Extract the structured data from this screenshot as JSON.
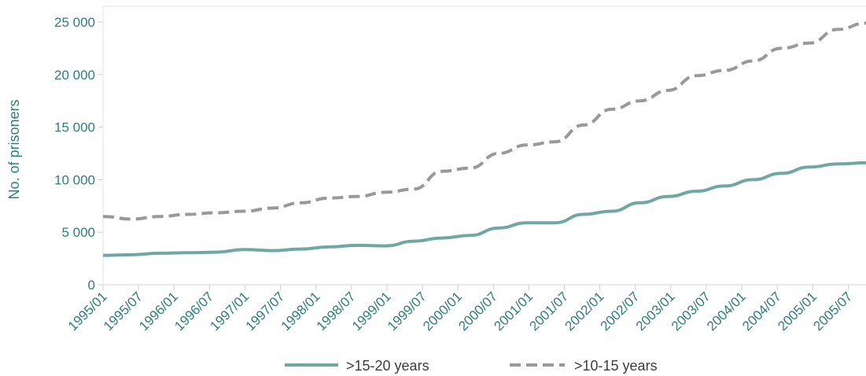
{
  "chart_data": {
    "type": "line",
    "title": "",
    "xlabel": "",
    "ylabel": "No. of prisoners",
    "ylim": [
      0,
      26500
    ],
    "y_ticks": [
      {
        "value": 0,
        "label": "0"
      },
      {
        "value": 5000,
        "label": "5 000"
      },
      {
        "value": 10000,
        "label": "10 000"
      },
      {
        "value": 15000,
        "label": "15 000"
      },
      {
        "value": 20000,
        "label": "20 000"
      },
      {
        "value": 25000,
        "label": "25 000"
      }
    ],
    "x_tick_labels": [
      "1995/01",
      "1995/07",
      "1996/01",
      "1996/07",
      "1997/01",
      "1997/07",
      "1998/01",
      "1998/07",
      "1999/01",
      "1999/07",
      "2000/01",
      "2000/07",
      "2001/01",
      "2001/07",
      "2002/01",
      "2002/07",
      "2003/01",
      "2003/07",
      "2004/01",
      "2004/07",
      "2005/01",
      "2005/07"
    ],
    "grid": false,
    "legend_position": "bottom",
    "series": [
      {
        "name": ">15-20 years",
        "color": "#6fa8a3",
        "style": "solid",
        "values": [
          2800,
          2850,
          3000,
          3050,
          3100,
          3350,
          3250,
          3400,
          3600,
          3750,
          3700,
          4150,
          4450,
          4700,
          5400,
          5900,
          5900,
          6700,
          7000,
          7800,
          8400,
          8900,
          9400,
          10000,
          10600,
          11200,
          11500,
          11600
        ]
      },
      {
        "name": ">10-15 years",
        "color": "#999999",
        "style": "dashed",
        "values": [
          6500,
          6250,
          6500,
          6700,
          6850,
          7000,
          7300,
          7800,
          8250,
          8400,
          8800,
          9100,
          10800,
          11100,
          12500,
          13300,
          13600,
          15200,
          16700,
          17500,
          18500,
          19900,
          20400,
          21300,
          22500,
          23000,
          24300,
          24900
        ]
      }
    ]
  }
}
